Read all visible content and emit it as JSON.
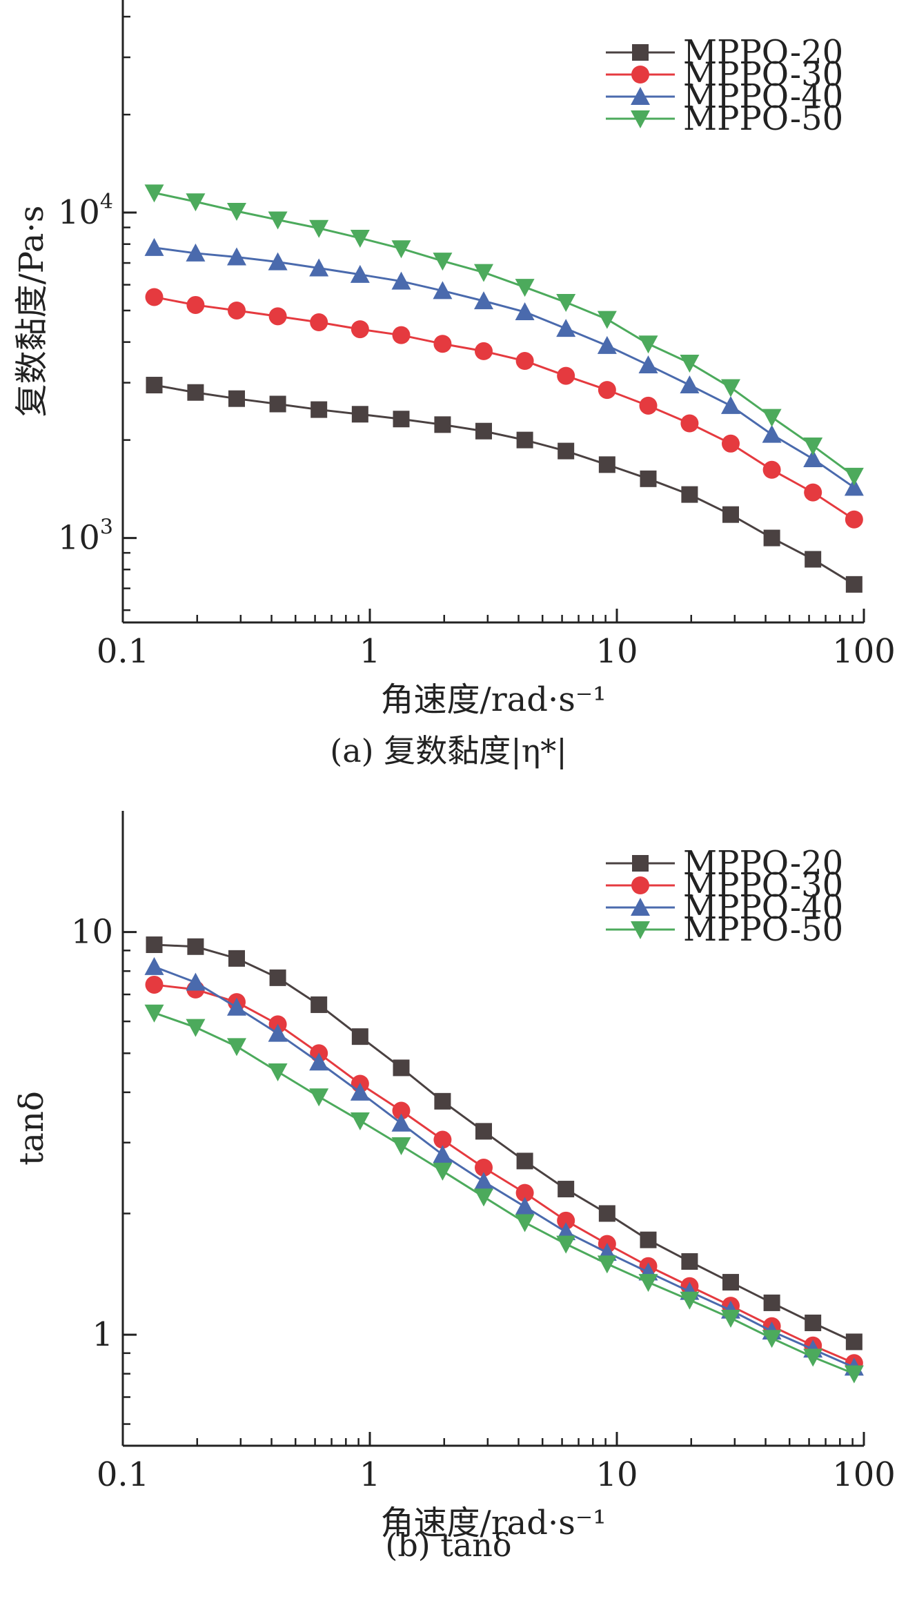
{
  "chart_data": [
    {
      "type": "line",
      "panel": "a",
      "caption": "(a) 复数黏度|η*|",
      "xlabel": "角速度/rad·s⁻¹",
      "ylabel": "复数黏度/Pa·s",
      "xscale": "log",
      "yscale": "log",
      "xlim": [
        0.1,
        100
      ],
      "ylim": [
        550,
        45000
      ],
      "xticks": [
        {
          "value": 0.1,
          "label": "0.1"
        },
        {
          "value": 1,
          "label": "1"
        },
        {
          "value": 10,
          "label": "10"
        },
        {
          "value": 100,
          "label": "100"
        }
      ],
      "yticks": [
        {
          "value": 1000,
          "base": "10",
          "exp": "3"
        },
        {
          "value": 10000,
          "base": "10",
          "exp": "4"
        }
      ],
      "legend_position": "top-right",
      "x": [
        0.134,
        0.197,
        0.289,
        0.424,
        0.622,
        0.913,
        1.34,
        1.97,
        2.89,
        4.24,
        6.22,
        9.13,
        13.4,
        19.7,
        28.9,
        42.4,
        62.2,
        91.3
      ],
      "series": [
        {
          "name": "MPPO-20",
          "color": "#4a4141",
          "marker": "square",
          "values": [
            2950,
            2800,
            2680,
            2580,
            2480,
            2400,
            2320,
            2230,
            2130,
            2000,
            1850,
            1680,
            1520,
            1360,
            1180,
            1000,
            860,
            720
          ]
        },
        {
          "name": "MPPO-30",
          "color": "#e53a3f",
          "marker": "circle",
          "values": [
            5500,
            5200,
            5000,
            4800,
            4600,
            4380,
            4200,
            3950,
            3750,
            3500,
            3150,
            2850,
            2550,
            2250,
            1950,
            1620,
            1380,
            1140
          ]
        },
        {
          "name": "MPPO-40",
          "color": "#4a6aad",
          "marker": "triangle-up",
          "values": [
            7800,
            7500,
            7300,
            7050,
            6750,
            6450,
            6150,
            5750,
            5350,
            4950,
            4400,
            3900,
            3400,
            2950,
            2550,
            2080,
            1750,
            1430
          ]
        },
        {
          "name": "MPPO-50",
          "color": "#4caa5c",
          "marker": "triangle-down",
          "values": [
            11500,
            10800,
            10100,
            9500,
            8950,
            8350,
            7750,
            7100,
            6550,
            5900,
            5300,
            4700,
            3950,
            3450,
            2900,
            2350,
            1920,
            1550
          ]
        }
      ]
    },
    {
      "type": "line",
      "panel": "b",
      "caption": "(b) tanδ",
      "xlabel": "角速度/rad·s⁻¹",
      "ylabel": "tanδ",
      "xscale": "log",
      "yscale": "log",
      "xlim": [
        0.1,
        100
      ],
      "ylim": [
        0.53,
        20
      ],
      "xticks": [
        {
          "value": 0.1,
          "label": "0.1"
        },
        {
          "value": 1,
          "label": "1"
        },
        {
          "value": 10,
          "label": "10"
        },
        {
          "value": 100,
          "label": "100"
        }
      ],
      "yticks": [
        {
          "value": 1,
          "label": "1"
        },
        {
          "value": 10,
          "label": "10"
        }
      ],
      "legend_position": "top-right",
      "x": [
        0.134,
        0.197,
        0.289,
        0.424,
        0.622,
        0.913,
        1.34,
        1.97,
        2.89,
        4.24,
        6.22,
        9.13,
        13.4,
        19.7,
        28.9,
        42.4,
        62.2,
        91.3
      ],
      "series": [
        {
          "name": "MPPO-20",
          "color": "#4a4141",
          "marker": "square",
          "values": [
            9.3,
            9.2,
            8.6,
            7.7,
            6.6,
            5.5,
            4.6,
            3.8,
            3.2,
            2.7,
            2.3,
            2.0,
            1.72,
            1.52,
            1.35,
            1.2,
            1.07,
            0.96
          ]
        },
        {
          "name": "MPPO-30",
          "color": "#e53a3f",
          "marker": "circle",
          "values": [
            7.4,
            7.2,
            6.7,
            5.9,
            5.0,
            4.2,
            3.6,
            3.05,
            2.6,
            2.25,
            1.92,
            1.68,
            1.48,
            1.32,
            1.18,
            1.05,
            0.94,
            0.85
          ]
        },
        {
          "name": "MPPO-40",
          "color": "#4a6aad",
          "marker": "triangle-up",
          "values": [
            8.2,
            7.5,
            6.5,
            5.6,
            4.75,
            4.0,
            3.35,
            2.8,
            2.4,
            2.08,
            1.8,
            1.6,
            1.43,
            1.28,
            1.15,
            1.02,
            0.92,
            0.83
          ]
        },
        {
          "name": "MPPO-50",
          "color": "#4caa5c",
          "marker": "triangle-down",
          "values": [
            6.3,
            5.8,
            5.2,
            4.5,
            3.9,
            3.4,
            2.95,
            2.55,
            2.2,
            1.9,
            1.68,
            1.5,
            1.35,
            1.22,
            1.1,
            0.98,
            0.88,
            0.8
          ]
        }
      ]
    }
  ]
}
